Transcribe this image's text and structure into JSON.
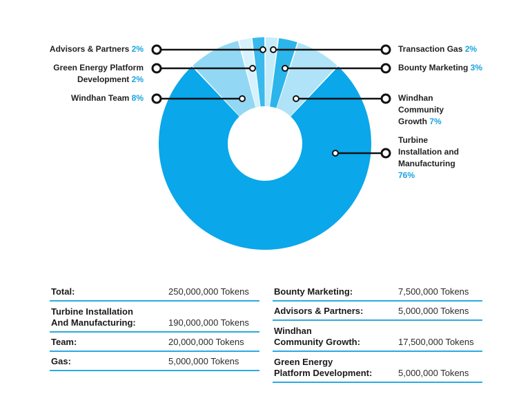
{
  "chart_data": {
    "type": "pie",
    "donut": true,
    "slices": [
      {
        "label": "Transaction Gas",
        "percent_label": "2%",
        "value": 2,
        "color": "#c6ecfa"
      },
      {
        "label": "Bounty Marketing",
        "percent_label": "3%",
        "value": 3,
        "color": "#2cb5ea"
      },
      {
        "label": "Windhan Community Growth",
        "percent_label": "7%",
        "value": 7,
        "color": "#b0e3f7"
      },
      {
        "label": "Turbine Installation and Manufacturing",
        "percent_label": "76%",
        "value": 76,
        "color": "#0aa7ea"
      },
      {
        "label": "Windhan Team",
        "percent_label": "8%",
        "value": 8,
        "color": "#92d8f5"
      },
      {
        "label": "Green Energy Platform Development",
        "percent_label": "2%",
        "value": 2,
        "color": "#d6f2fc"
      },
      {
        "label": "Advisors & Partners",
        "percent_label": "2%",
        "value": 2,
        "color": "#39b9ec"
      }
    ],
    "callouts": [
      {
        "lines": [
          "Advisors & Partners"
        ],
        "pct": "2%",
        "side": "left"
      },
      {
        "lines": [
          "Green Energy Platform",
          "Development"
        ],
        "pct": "2%",
        "side": "left"
      },
      {
        "lines": [
          "Windhan Team"
        ],
        "pct": "8%",
        "side": "left"
      },
      {
        "lines": [
          "Transaction Gas"
        ],
        "pct": "2%",
        "side": "right"
      },
      {
        "lines": [
          "Bounty Marketing"
        ],
        "pct": "3%",
        "side": "right"
      },
      {
        "lines": [
          "Windhan",
          "Community",
          "Growth"
        ],
        "pct": "7%",
        "side": "right"
      },
      {
        "lines": [
          "Turbine",
          "Installation and",
          "Manufacturing"
        ],
        "pct": "76%",
        "side": "right"
      }
    ]
  },
  "tables": {
    "left": [
      {
        "label": "Total:",
        "value": "250,000,000 Tokens"
      },
      {
        "label": "Turbine Installation\nAnd Manufacturing:",
        "value": "190,000,000 Tokens"
      },
      {
        "label": "Team:",
        "value": "20,000,000 Tokens"
      },
      {
        "label": "Gas:",
        "value": "5,000,000 Tokens"
      }
    ],
    "right": [
      {
        "label": "Bounty Marketing:",
        "value": "7,500,000 Tokens"
      },
      {
        "label": "Advisors & Partners:",
        "value": "5,000,000 Tokens"
      },
      {
        "label": "Windhan\nCommunity Growth:",
        "value": "17,500,000 Tokens"
      },
      {
        "label": "Green Energy\nPlatform Development:",
        "value": "5,000,000 Tokens"
      }
    ]
  }
}
